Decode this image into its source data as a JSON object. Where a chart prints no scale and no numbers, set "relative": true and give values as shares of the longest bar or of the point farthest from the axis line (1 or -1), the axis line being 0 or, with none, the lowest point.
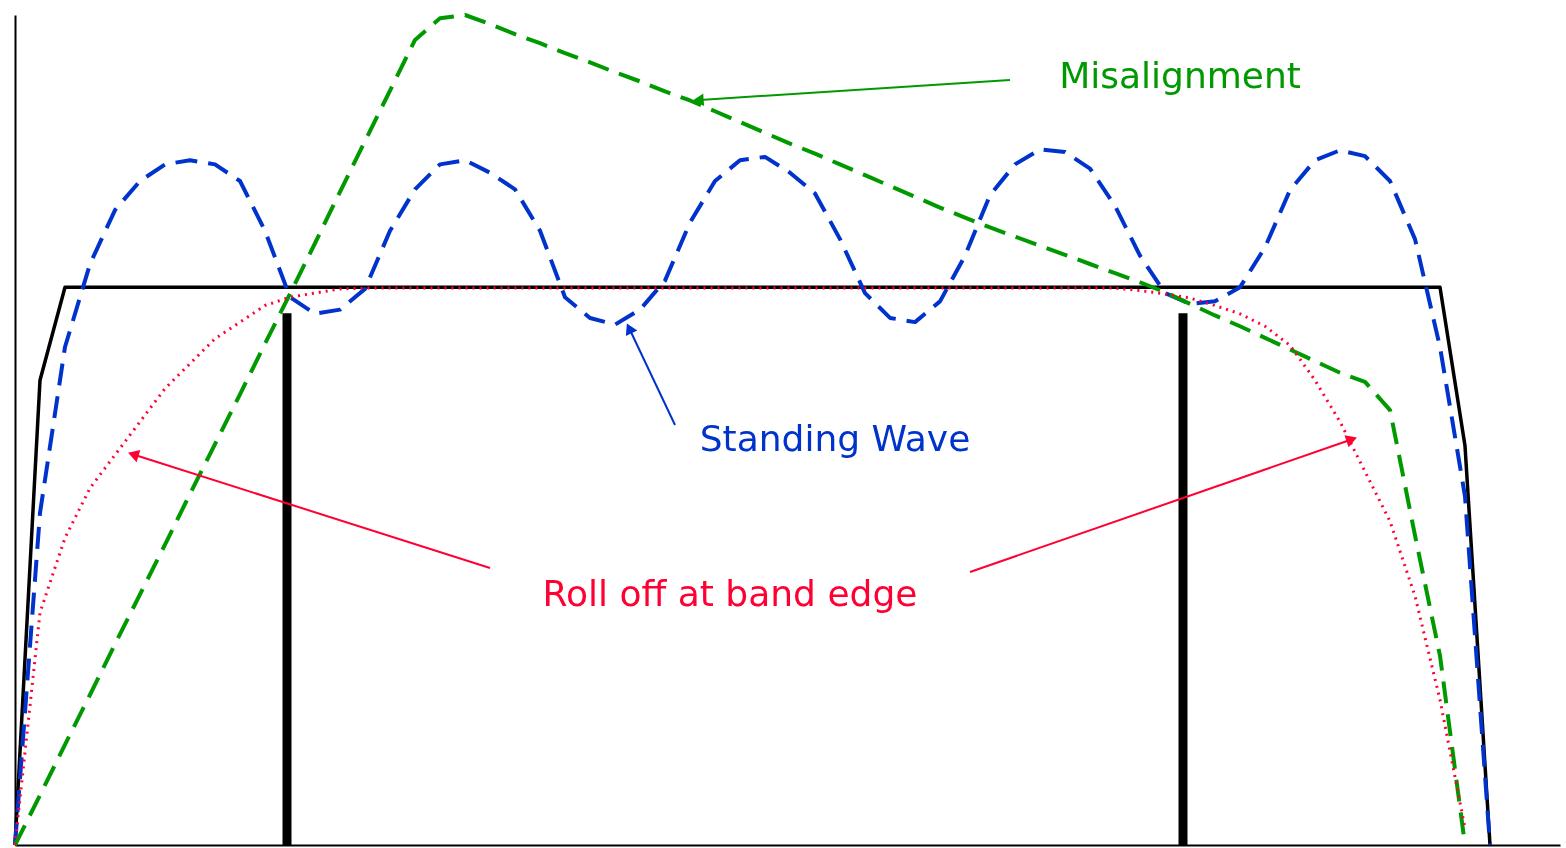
{
  "chart_data": {
    "type": "line",
    "relative": true,
    "grid": false,
    "categories": [
      null,
      null,
      null,
      null,
      null,
      null,
      null,
      null,
      null,
      null,
      null,
      null,
      null,
      null,
      null,
      null,
      null,
      null,
      null,
      null,
      null,
      null,
      null,
      null,
      null,
      null,
      null,
      null,
      null,
      null,
      null,
      null,
      null,
      null,
      null,
      null,
      null,
      null,
      null,
      null,
      null,
      null,
      null,
      null,
      null,
      null,
      null,
      null,
      null,
      null,
      null,
      null,
      null,
      null,
      null,
      null,
      null,
      null,
      null,
      null
    ],
    "series": [
      {
        "line_style": "solid",
        "color": "#000000",
        "values": [
          0,
          0.56,
          0.672,
          0.672,
          0.672,
          0.672,
          0.672,
          0.672,
          0.672,
          0.672,
          0.672,
          0.672,
          0.672,
          0.672,
          0.672,
          0.672,
          0.672,
          0.672,
          0.672,
          0.672,
          0.672,
          0.672,
          0.672,
          0.672,
          0.672,
          0.672,
          0.672,
          0.672,
          0.672,
          0.672,
          0.672,
          0.672,
          0.672,
          0.672,
          0.672,
          0.672,
          0.672,
          0.672,
          0.672,
          0.672,
          0.672,
          0.672,
          0.672,
          0.672,
          0.672,
          0.672,
          0.672,
          0.672,
          0.672,
          0.672,
          0.672,
          0.672,
          0.672,
          0.672,
          0.672,
          0.672,
          0.672,
          0.672,
          0.481,
          0
        ]
      },
      {
        "line_style": "dashed",
        "color": "#0033cc",
        "values": [
          0,
          0.4,
          0.6,
          0.7,
          0.765,
          0.8,
          0.82,
          0.825,
          0.82,
          0.8,
          0.74,
          0.66,
          0.64,
          0.645,
          0.67,
          0.74,
          0.79,
          0.82,
          0.825,
          0.81,
          0.79,
          0.74,
          0.66,
          0.635,
          0.627,
          0.645,
          0.68,
          0.75,
          0.8,
          0.825,
          0.829,
          0.81,
          0.785,
          0.73,
          0.665,
          0.635,
          0.63,
          0.655,
          0.71,
          0.783,
          0.82,
          0.838,
          0.835,
          0.815,
          0.77,
          0.71,
          0.665,
          0.652,
          0.655,
          0.672,
          0.72,
          0.789,
          0.825,
          0.837,
          0.83,
          0.8,
          0.73,
          0.6,
          0.42,
          0
        ]
      },
      {
        "line_style": "dashed",
        "color": "#009900",
        "values": [
          0,
          0.06,
          0.121,
          0.181,
          0.242,
          0.302,
          0.362,
          0.423,
          0.483,
          0.543,
          0.604,
          0.664,
          0.725,
          0.787,
          0.848,
          0.909,
          0.97,
          0.996,
          1.0,
          0.989,
          0.977,
          0.966,
          0.954,
          0.943,
          0.931,
          0.92,
          0.908,
          0.897,
          0.884,
          0.871,
          0.858,
          0.845,
          0.833,
          0.82,
          0.807,
          0.794,
          0.781,
          0.768,
          0.756,
          0.744,
          0.733,
          0.722,
          0.711,
          0.7,
          0.689,
          0.678,
          0.666,
          0.652,
          0.638,
          0.625,
          0.611,
          0.597,
          0.583,
          0.569,
          0.558,
          0.524,
          0.373,
          0.228,
          0,
          null
        ]
      },
      {
        "line_style": "dotted",
        "color": "#ff0033",
        "values": [
          0,
          0.28,
          0.37,
          0.43,
          0.47,
          0.51,
          0.55,
          0.58,
          0.61,
          0.63,
          0.65,
          0.66,
          0.665,
          0.67,
          0.671,
          0.671,
          0.671,
          0.671,
          0.671,
          0.671,
          0.671,
          0.671,
          0.671,
          0.671,
          0.671,
          0.671,
          0.671,
          0.671,
          0.671,
          0.671,
          0.671,
          0.671,
          0.671,
          0.671,
          0.671,
          0.671,
          0.671,
          0.671,
          0.671,
          0.671,
          0.671,
          0.671,
          0.671,
          0.671,
          0.671,
          0.668,
          0.664,
          0.659,
          0.65,
          0.64,
          0.625,
          0.602,
          0.56,
          0.51,
          0.45,
          0.39,
          0.3,
          0.175,
          0.02,
          null
        ]
      }
    ],
    "annotations": [
      "Misalignment",
      "Standing Wave",
      "Roll off at band edge"
    ]
  }
}
